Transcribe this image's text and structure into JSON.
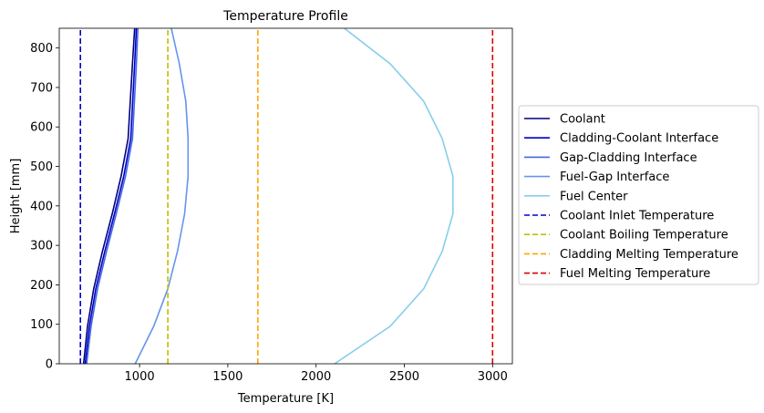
{
  "chart_data": {
    "type": "line",
    "title": "Temperature Profile",
    "xlabel": "Temperature [K]",
    "ylabel": "Height [mm]",
    "xlim": [
      545,
      3112
    ],
    "ylim": [
      0,
      850
    ],
    "xticks": [
      1000,
      1500,
      2000,
      2500,
      3000
    ],
    "yticks": [
      0,
      100,
      200,
      300,
      400,
      500,
      600,
      700,
      800
    ],
    "grid": false,
    "legend_position": "outside-right",
    "series": [
      {
        "name": "Coolant",
        "color": "#000080",
        "dash": "solid",
        "x": [
          683,
          705,
          740,
          790,
          845,
          895,
          935,
          960,
          972
        ],
        "y": [
          0,
          95,
          190,
          285,
          380,
          475,
          570,
          760,
          850
        ]
      },
      {
        "name": "Cladding-Coolant Interface",
        "color": "#0000cd",
        "dash": "solid",
        "x": [
          692,
          716,
          752,
          803,
          858,
          910,
          950,
          972,
          982
        ],
        "y": [
          0,
          95,
          190,
          285,
          380,
          475,
          570,
          760,
          850
        ]
      },
      {
        "name": "Gap-Cladding Interface",
        "color": "#4169e1",
        "dash": "solid",
        "x": [
          700,
          725,
          762,
          813,
          868,
          920,
          960,
          982,
          990
        ],
        "y": [
          0,
          95,
          190,
          285,
          380,
          475,
          570,
          760,
          850
        ]
      },
      {
        "name": "Fuel-Gap Interface",
        "color": "#6495ed",
        "dash": "solid",
        "x": [
          975,
          1080,
          1160,
          1215,
          1255,
          1275,
          1275,
          1262,
          1225,
          1180
        ],
        "y": [
          0,
          95,
          190,
          285,
          380,
          475,
          570,
          665,
          760,
          850
        ]
      },
      {
        "name": "Fuel Center",
        "color": "#87ceeb",
        "dash": "solid",
        "x": [
          2105,
          2420,
          2610,
          2715,
          2775,
          2775,
          2715,
          2610,
          2420,
          2160
        ],
        "y": [
          0,
          95,
          190,
          285,
          380,
          475,
          570,
          665,
          760,
          850
        ]
      },
      {
        "name": "Coolant Inlet Temperature",
        "color": "#0000cd",
        "dash": "dashed",
        "x": [
          665,
          665
        ],
        "y": [
          0,
          850
        ]
      },
      {
        "name": "Coolant Boiling Temperature",
        "color": "#bfbf00",
        "dash": "dashed",
        "x": [
          1160,
          1160
        ],
        "y": [
          0,
          850
        ]
      },
      {
        "name": "Cladding Melting Temperature",
        "color": "#ffa500",
        "dash": "dashed",
        "x": [
          1670,
          1670
        ],
        "y": [
          0,
          850
        ]
      },
      {
        "name": "Fuel Melting Temperature",
        "color": "#e00000",
        "dash": "dashed",
        "x": [
          3000,
          3000
        ],
        "y": [
          0,
          850
        ]
      }
    ]
  }
}
